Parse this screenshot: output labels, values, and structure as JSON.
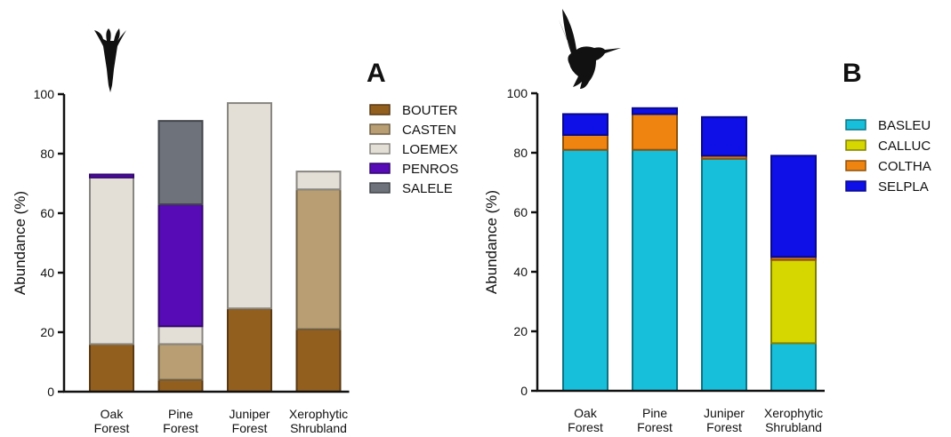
{
  "chart_data": [
    {
      "type": "bar",
      "stacked": true,
      "panel_label": "A",
      "ylabel": "Abundance (%)",
      "ylim": [
        0,
        100
      ],
      "yticks": [
        "0",
        "20",
        "40",
        "60",
        "80",
        "100"
      ],
      "categories": [
        [
          "Oak",
          "Forest"
        ],
        [
          "Pine",
          "Forest"
        ],
        [
          "Juniper",
          "Forest"
        ],
        [
          "Xerophytic",
          "Shrubland"
        ]
      ],
      "legend_position": "right",
      "series": [
        {
          "name": "BOUTER",
          "color": "#935f1f",
          "values": [
            16,
            4,
            28,
            21
          ]
        },
        {
          "name": "CASTEN",
          "color": "#b89e72",
          "values": [
            0,
            12,
            0,
            47
          ]
        },
        {
          "name": "LOEMEX",
          "color": "#e3dfd6",
          "values": [
            56,
            6,
            69,
            6
          ]
        },
        {
          "name": "PENROS",
          "color": "#570bb7",
          "values": [
            1,
            41,
            0,
            0
          ]
        },
        {
          "name": "SALELE",
          "color": "#6e737b",
          "values": [
            0,
            28,
            0,
            0
          ]
        }
      ],
      "icon": "flower-icon"
    },
    {
      "type": "bar",
      "stacked": true,
      "panel_label": "B",
      "ylabel": "Abundance (%)",
      "ylim": [
        0,
        100
      ],
      "yticks": [
        "0",
        "20",
        "40",
        "60",
        "80",
        "100"
      ],
      "categories": [
        [
          "Oak",
          "Forest"
        ],
        [
          "Pine",
          "Forest"
        ],
        [
          "Juniper",
          "Forest"
        ],
        [
          "Xerophytic",
          "Shrubland"
        ]
      ],
      "legend_position": "right",
      "series": [
        {
          "name": "BASLEU",
          "color": "#18bfdb",
          "values": [
            81,
            81,
            78,
            16
          ]
        },
        {
          "name": "CALLUC",
          "color": "#d6d600",
          "values": [
            0,
            0,
            0,
            28
          ]
        },
        {
          "name": "COLTHA",
          "color": "#ef8510",
          "values": [
            5,
            12,
            1,
            1
          ]
        },
        {
          "name": "SELPLA",
          "color": "#0f0fe8",
          "values": [
            7,
            2,
            13,
            34
          ]
        }
      ],
      "icon": "hummingbird-icon"
    }
  ]
}
